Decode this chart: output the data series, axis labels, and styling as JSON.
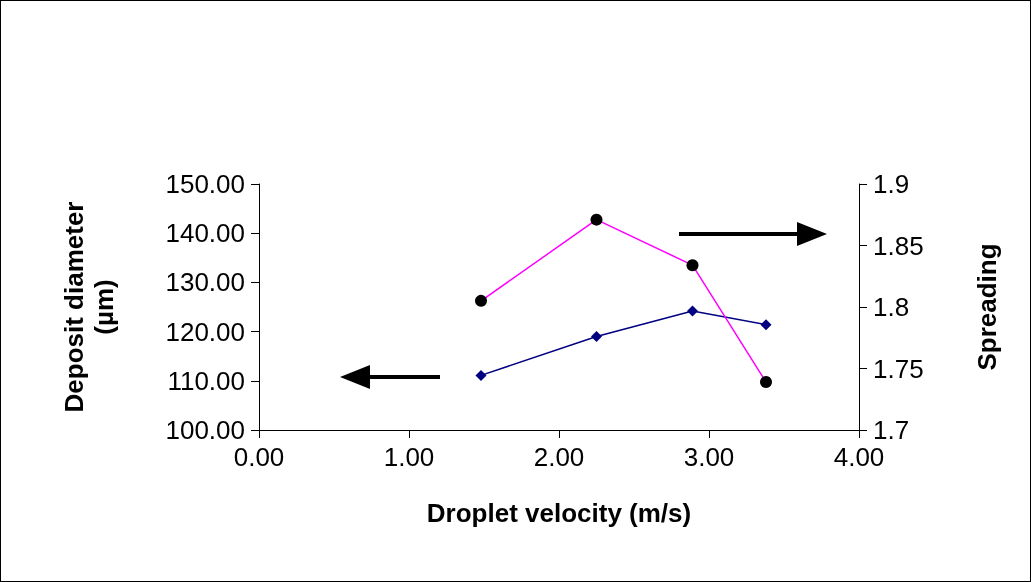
{
  "chart_data": {
    "type": "line",
    "xlabel": "Droplet velocity (m/s)",
    "ylabel": "Deposit diameter (µm)",
    "y2label": "Spreading",
    "x": [
      1.48,
      2.25,
      2.89,
      3.38
    ],
    "series": [
      {
        "color": "#000080",
        "marker": "diamond",
        "values": [
          111.1,
          119.0,
          124.2,
          121.4
        ]
      },
      {
        "color": "#ff00ff",
        "marker": "circle",
        "axis": "y2",
        "values": [
          1.805,
          1.871,
          1.834,
          1.739
        ]
      }
    ],
    "xlim": [
      0,
      4
    ],
    "xticks": [
      {
        "value": 0,
        "label": "0.00"
      },
      {
        "value": 1,
        "label": "1.00"
      },
      {
        "value": 2,
        "label": "2.00"
      },
      {
        "value": 3,
        "label": "3.00"
      },
      {
        "value": 4,
        "label": "4.00"
      }
    ],
    "ylim": [
      100,
      150
    ],
    "yticks": [
      {
        "value": 100,
        "label": "100.00"
      },
      {
        "value": 110,
        "label": "110.00"
      },
      {
        "value": 120,
        "label": "120.00"
      },
      {
        "value": 130,
        "label": "130.00"
      },
      {
        "value": 140,
        "label": "140.00"
      },
      {
        "value": 150,
        "label": "150.00"
      }
    ],
    "y2lim": [
      1.7,
      1.9
    ],
    "y2ticks": [
      1.7,
      1.75,
      1.8,
      1.85,
      1.9
    ],
    "grid": false,
    "line_style": "solid"
  }
}
